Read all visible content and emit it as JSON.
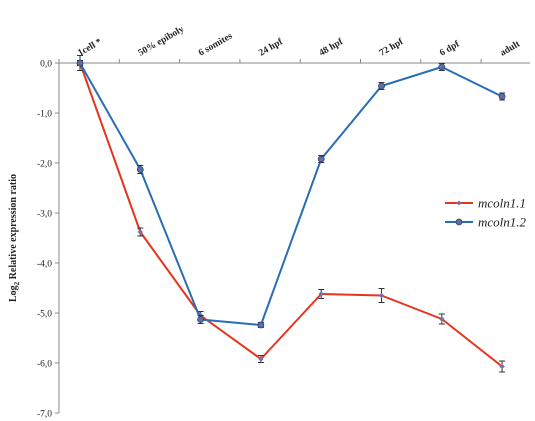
{
  "chart_data": {
    "type": "line",
    "title": "",
    "xlabel": "",
    "ylabel_main": "Log",
    "ylabel_sub": "2",
    "ylabel_rest": " Relative expression ratio",
    "categories": [
      "1cell *",
      "50% epiboly",
      "6 somites",
      "24 hpf",
      "48 hpf",
      "72 hpf",
      "6 dpf",
      "adult"
    ],
    "ylim": [
      -7.0,
      0.0
    ],
    "yticks": [
      0.0,
      -1.0,
      -2.0,
      -3.0,
      -4.0,
      -5.0,
      -6.0,
      -7.0
    ],
    "ytick_labels": [
      "0,0",
      "-1,0",
      "-2,0",
      "-3,0",
      "-4,0",
      "-5,0",
      "-6,0",
      "-7,0"
    ],
    "x_axis_position": "top",
    "grid": false,
    "legend_position": "right",
    "series": [
      {
        "name": "mcoln1.1",
        "color": "#e8331c",
        "marker": "small-diamond",
        "values": [
          0.0,
          -3.38,
          -5.05,
          -5.92,
          -4.62,
          -4.65,
          -5.12,
          -6.07
        ],
        "errors": [
          0.15,
          0.08,
          0.08,
          0.07,
          0.09,
          0.14,
          0.1,
          0.11
        ]
      },
      {
        "name": "mcoln1.2",
        "color": "#2a6db5",
        "marker": "circle",
        "values": [
          0.0,
          -2.13,
          -5.13,
          -5.24,
          -1.92,
          -0.46,
          -0.08,
          -0.67
        ],
        "errors": [
          0.05,
          0.08,
          0.08,
          0.05,
          0.07,
          0.07,
          0.07,
          0.07
        ]
      }
    ]
  }
}
